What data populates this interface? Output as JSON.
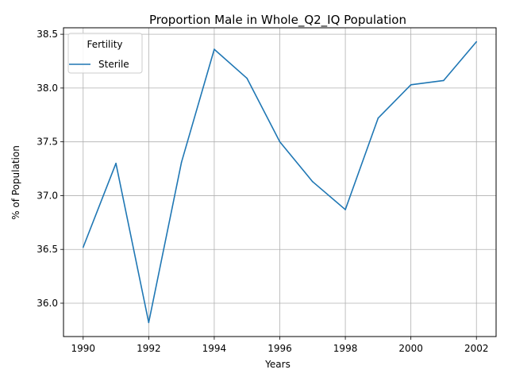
{
  "chart_data": {
    "type": "line",
    "title": "Proportion Male in Whole_Q2_IQ Population",
    "xlabel": "Years",
    "ylabel": "% of Population",
    "xlim": [
      1989.4,
      2002.6
    ],
    "ylim": [
      35.69,
      38.56
    ],
    "x_ticks": [
      1990,
      1992,
      1994,
      1996,
      1998,
      2000,
      2002
    ],
    "y_ticks": [
      36.0,
      36.5,
      37.0,
      37.5,
      38.0,
      38.5
    ],
    "y_tick_labels": [
      "36.0",
      "36.5",
      "37.0",
      "37.5",
      "38.0",
      "38.5"
    ],
    "grid": true,
    "legend": {
      "title": "Fertility",
      "placement": "top-left"
    },
    "x": [
      1990,
      1991,
      1992,
      1993,
      1994,
      1995,
      1996,
      1997,
      1998,
      1999,
      2000,
      2001,
      2002
    ],
    "series": [
      {
        "name": "Sterile",
        "color": "#1f77b4",
        "values": [
          36.52,
          37.3,
          35.82,
          37.31,
          38.36,
          38.09,
          37.5,
          37.13,
          36.87,
          37.72,
          38.03,
          38.07,
          38.43
        ]
      }
    ]
  }
}
